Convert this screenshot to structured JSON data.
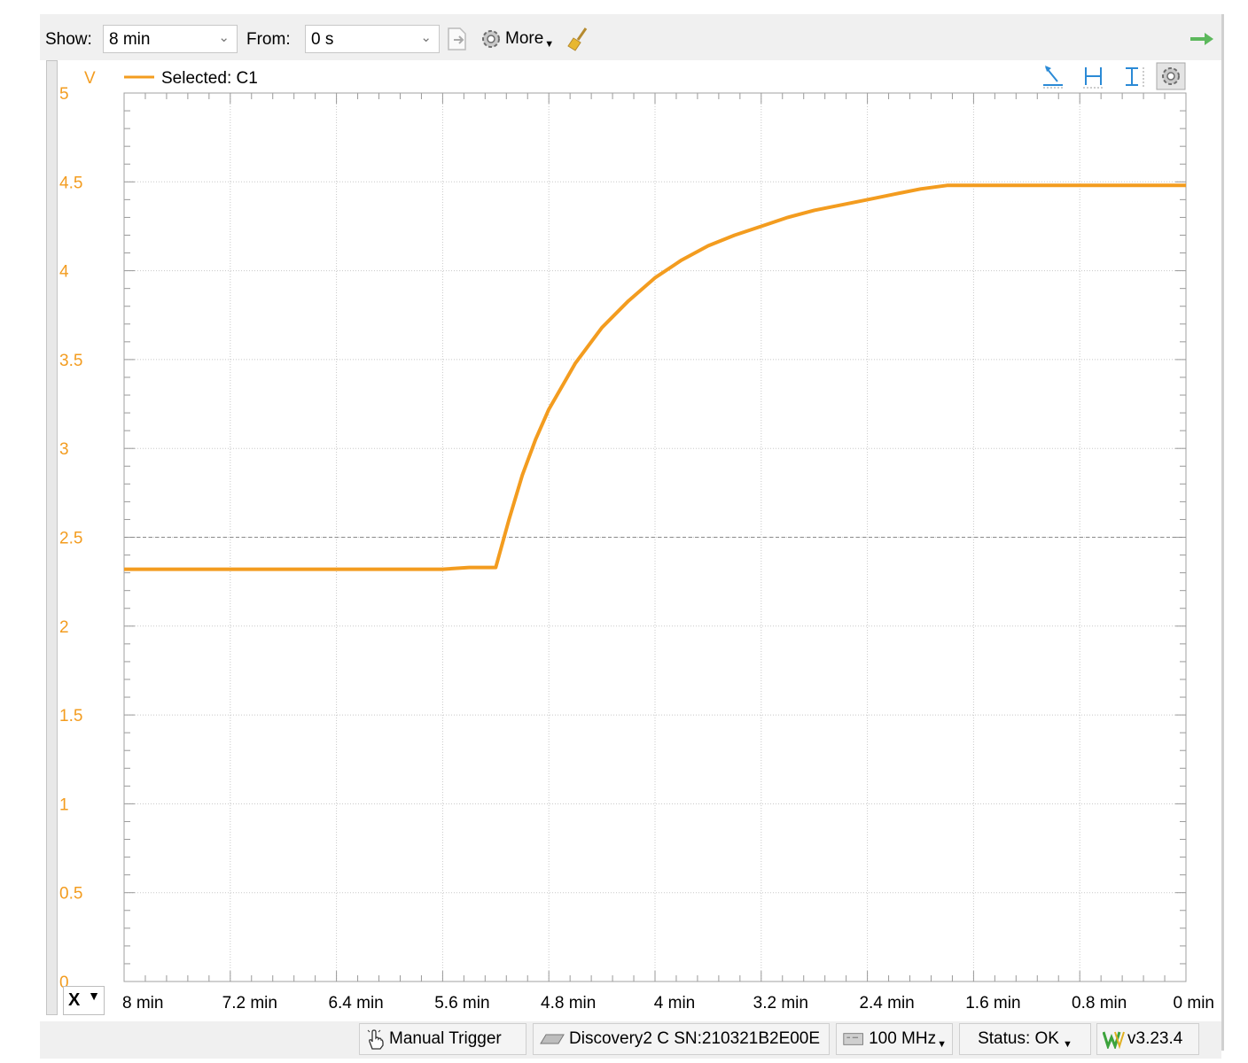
{
  "toolbar": {
    "show_label": "Show:",
    "show_value": "8 min",
    "from_label": "From:",
    "from_value": "0 s",
    "more_label": "More",
    "icons": [
      "export-icon",
      "gear-icon",
      "broom-icon",
      "green-arrow-icon"
    ]
  },
  "plot": {
    "unit_label": "V",
    "legend_label": "Selected: C1",
    "plot_icons": [
      "cursor-icon",
      "horizontal-cursor-icon",
      "vertical-cursor-icon",
      "gear-icon"
    ],
    "x_axis_selector": "X"
  },
  "chart_data": {
    "type": "line",
    "series": [
      {
        "name": "C1",
        "color": "#F39C1F",
        "x": [
          8,
          7.6,
          7.2,
          6.8,
          6.4,
          6.0,
          5.6,
          5.4,
          5.2,
          5.1,
          5.0,
          4.9,
          4.8,
          4.6,
          4.4,
          4.2,
          4.0,
          3.8,
          3.6,
          3.4,
          3.2,
          3.0,
          2.8,
          2.6,
          2.4,
          2.2,
          2.0,
          1.9,
          1.8,
          1.6,
          1.2,
          0.8,
          0.4,
          0.0
        ],
        "y": [
          2.32,
          2.32,
          2.32,
          2.32,
          2.32,
          2.32,
          2.32,
          2.33,
          2.33,
          2.6,
          2.85,
          3.05,
          3.22,
          3.48,
          3.68,
          3.83,
          3.96,
          4.06,
          4.14,
          4.2,
          4.25,
          4.3,
          4.34,
          4.37,
          4.4,
          4.43,
          4.46,
          4.47,
          4.48,
          4.48,
          4.48,
          4.48,
          4.48,
          4.48
        ]
      }
    ],
    "y_ticks": [
      "0",
      "0.5",
      "1",
      "1.5",
      "2",
      "2.5",
      "3",
      "3.5",
      "4",
      "4.5",
      "5"
    ],
    "x_ticks": [
      "8 min",
      "7.2 min",
      "6.4 min",
      "5.6 min",
      "4.8 min",
      "4 min",
      "3.2 min",
      "2.4 min",
      "1.6 min",
      "0.8 min",
      "0 min"
    ],
    "ylim": [
      0,
      5
    ],
    "xlim": [
      8,
      0
    ],
    "x_unit": "min",
    "y_unit": "V",
    "dashed_reference": 2.5,
    "grid": true,
    "axis_color": "#F39C1F"
  },
  "status": {
    "manual_trigger": "Manual Trigger",
    "device": "Discovery2 C SN:210321B2E00E",
    "frequency": "100 MHz",
    "status": "Status: OK",
    "version": "v3.23.4"
  }
}
